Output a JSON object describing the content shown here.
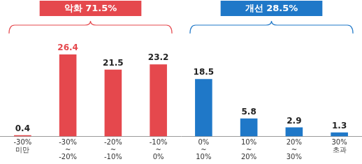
{
  "chart_data": {
    "type": "bar",
    "categories": [
      "-30%\n미만",
      "-30%\n~\n-20%",
      "-20%\n~\n-10%",
      "-10%\n~\n0%",
      "0%\n~\n10%",
      "10%\n~\n20%",
      "20%\n~\n30%",
      "30%\n초과"
    ],
    "values": [
      0.4,
      26.4,
      21.5,
      23.2,
      18.5,
      5.8,
      2.9,
      1.3
    ],
    "colors": [
      "#e5484d",
      "#e5484d",
      "#e5484d",
      "#e5484d",
      "#1f78c8",
      "#1f78c8",
      "#1f78c8",
      "#1f78c8"
    ],
    "ylim": [
      0,
      30
    ],
    "grid": false,
    "data_labels": true,
    "tick_labels": "x",
    "annotations": [
      {
        "text": "악화 71.5%",
        "span": [
          "-30%\n미만",
          "-10%\n~\n0%"
        ],
        "color": "#e5484d"
      },
      {
        "text": "개선 28.5%",
        "span": [
          "0%\n~\n10%",
          "30%\n초과"
        ],
        "color": "#1f78c8"
      }
    ]
  }
}
